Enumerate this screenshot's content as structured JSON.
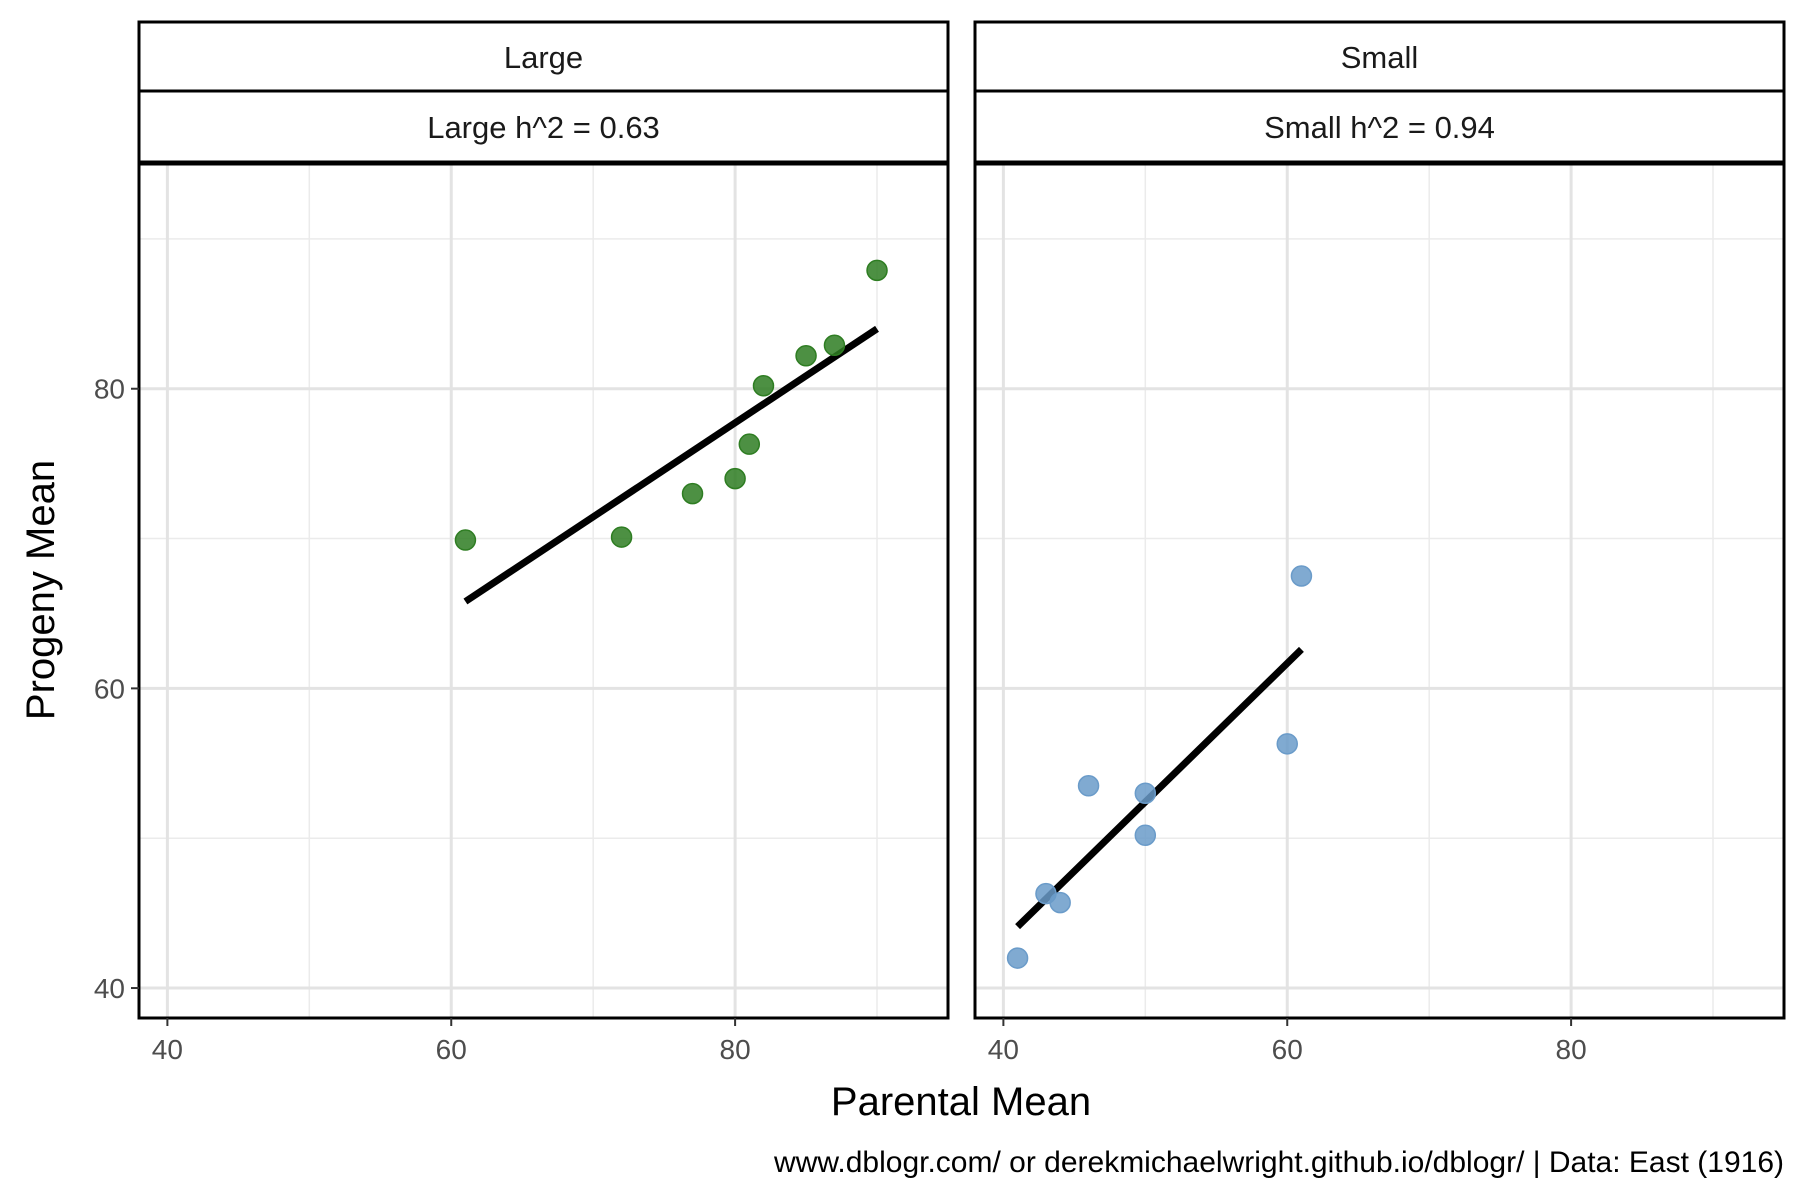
{
  "chart_data": {
    "type": "scatter",
    "xlabel": "Parental Mean",
    "ylabel": "Progeny Mean",
    "caption": "www.dblogr.com/ or derekmichaelwright.github.io/dblogr/ | Data: East (1916)",
    "xlim": [
      38,
      95
    ],
    "ylim": [
      38,
      95
    ],
    "x_ticks": [
      40,
      60,
      80
    ],
    "y_ticks": [
      40,
      60,
      80
    ],
    "grid": true,
    "panels": [
      {
        "strip": "Large",
        "subtitle": "Large h^2 = 0.63",
        "color": "#2e7d22",
        "points": [
          {
            "x": 61,
            "y": 69.9
          },
          {
            "x": 72,
            "y": 70.1
          },
          {
            "x": 77,
            "y": 73.0
          },
          {
            "x": 80,
            "y": 74.0
          },
          {
            "x": 81,
            "y": 76.3
          },
          {
            "x": 82,
            "y": 80.2
          },
          {
            "x": 85,
            "y": 82.2
          },
          {
            "x": 87,
            "y": 82.9
          },
          {
            "x": 90,
            "y": 87.9
          }
        ],
        "fit": {
          "x": [
            61,
            90
          ],
          "y": [
            65.8,
            84.0
          ]
        }
      },
      {
        "strip": "Small",
        "subtitle": "Small h^2 = 0.94",
        "color": "#6a9bc9",
        "points": [
          {
            "x": 41,
            "y": 42.0
          },
          {
            "x": 43,
            "y": 46.3
          },
          {
            "x": 44,
            "y": 45.7
          },
          {
            "x": 46,
            "y": 53.5
          },
          {
            "x": 50,
            "y": 53.0
          },
          {
            "x": 50,
            "y": 50.2
          },
          {
            "x": 60,
            "y": 56.3
          },
          {
            "x": 61,
            "y": 67.5
          }
        ],
        "fit": {
          "x": [
            41,
            61
          ],
          "y": [
            44.1,
            62.6
          ]
        }
      }
    ]
  }
}
